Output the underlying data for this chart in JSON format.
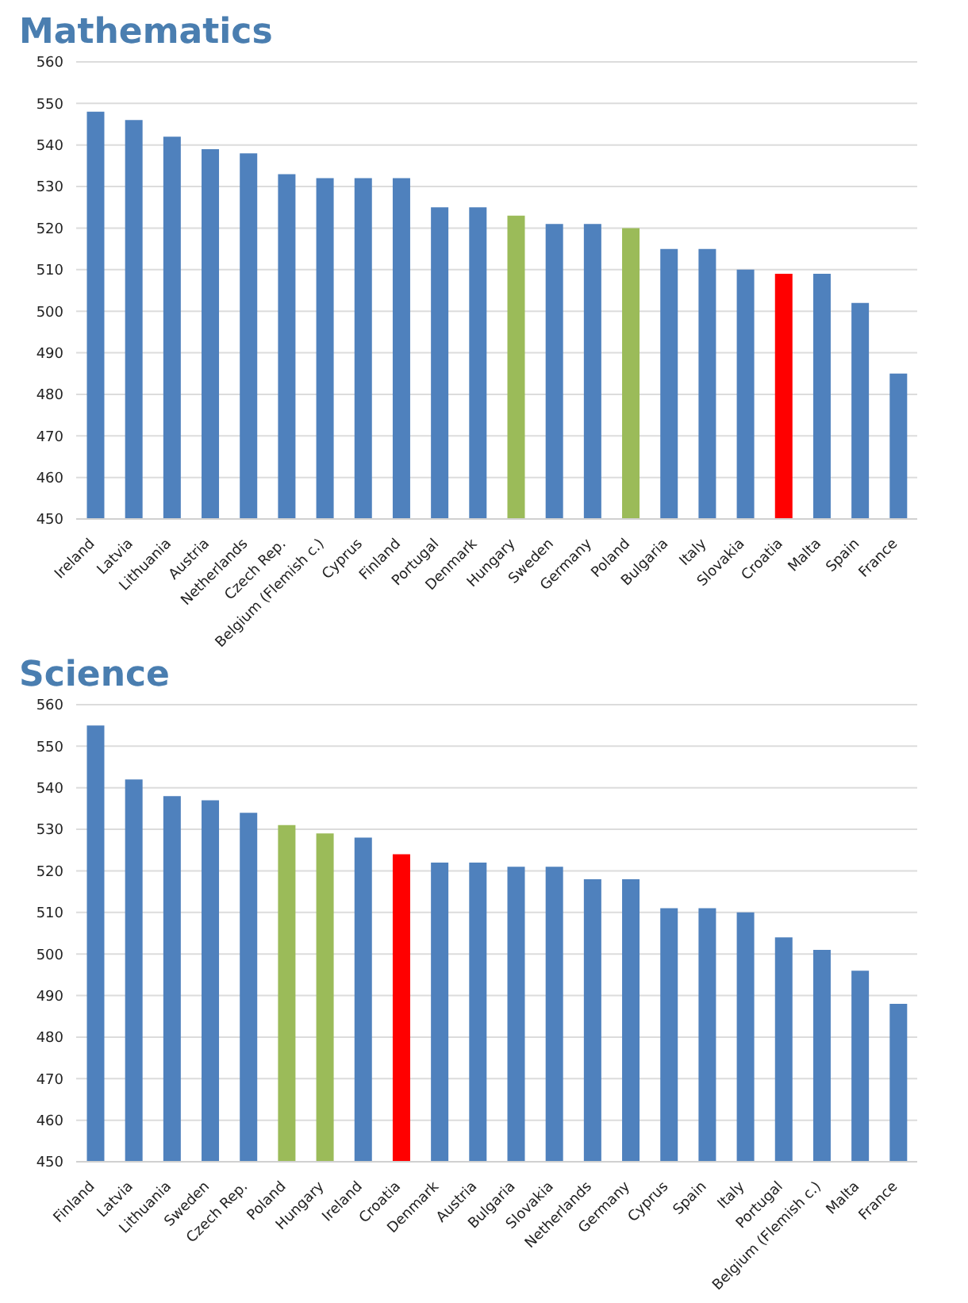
{
  "chart_data": [
    {
      "type": "bar",
      "title": "Mathematics",
      "categories": [
        "Ireland",
        "Latvia",
        "Lithuania",
        "Austria",
        "Netherlands",
        "Czech Rep.",
        "Belgium (Flemish c.)",
        "Cyprus",
        "Finland",
        "Portugal",
        "Denmark",
        "Hungary",
        "Sweden",
        "Germany",
        "Poland",
        "Bulgaria",
        "Italy",
        "Slovakia",
        "Croatia",
        "Malta",
        "Spain",
        "France"
      ],
      "values": [
        548,
        546,
        542,
        539,
        538,
        533,
        532,
        532,
        532,
        525,
        525,
        523,
        521,
        521,
        520,
        515,
        515,
        510,
        509,
        509,
        502,
        485
      ],
      "colors": [
        "#4f81bd",
        "#4f81bd",
        "#4f81bd",
        "#4f81bd",
        "#4f81bd",
        "#4f81bd",
        "#4f81bd",
        "#4f81bd",
        "#4f81bd",
        "#4f81bd",
        "#4f81bd",
        "#9bbb59",
        "#4f81bd",
        "#4f81bd",
        "#9bbb59",
        "#4f81bd",
        "#4f81bd",
        "#4f81bd",
        "#ff0000",
        "#4f81bd",
        "#4f81bd",
        "#4f81bd"
      ],
      "ylim": [
        450,
        560
      ],
      "yticks": [
        450,
        460,
        470,
        480,
        490,
        500,
        510,
        520,
        530,
        540,
        550,
        560
      ],
      "grid": "y"
    },
    {
      "type": "bar",
      "title": "Science",
      "categories": [
        "Finland",
        "Latvia",
        "Lithuania",
        "Sweden",
        "Czech Rep.",
        "Poland",
        "Hungary",
        "Ireland",
        "Croatia",
        "Denmark",
        "Austria",
        "Bulgaria",
        "Slovakia",
        "Netherlands",
        "Germany",
        "Cyprus",
        "Spain",
        "Italy",
        "Portugal",
        "Belgium (Flemish c.)",
        "Malta",
        "France"
      ],
      "values": [
        555,
        542,
        538,
        537,
        534,
        531,
        529,
        528,
        524,
        522,
        522,
        521,
        521,
        518,
        518,
        511,
        511,
        510,
        504,
        501,
        496,
        488
      ],
      "colors": [
        "#4f81bd",
        "#4f81bd",
        "#4f81bd",
        "#4f81bd",
        "#4f81bd",
        "#9bbb59",
        "#9bbb59",
        "#4f81bd",
        "#ff0000",
        "#4f81bd",
        "#4f81bd",
        "#4f81bd",
        "#4f81bd",
        "#4f81bd",
        "#4f81bd",
        "#4f81bd",
        "#4f81bd",
        "#4f81bd",
        "#4f81bd",
        "#4f81bd",
        "#4f81bd",
        "#4f81bd"
      ],
      "ylim": [
        450,
        560
      ],
      "yticks": [
        450,
        460,
        470,
        480,
        490,
        500,
        510,
        520,
        530,
        540,
        550,
        560
      ],
      "grid": "y"
    }
  ]
}
